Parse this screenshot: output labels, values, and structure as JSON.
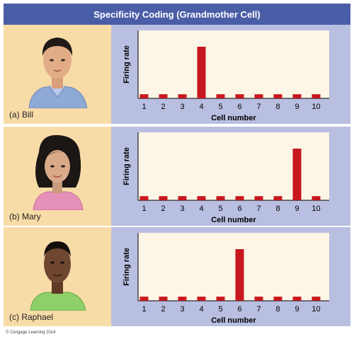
{
  "title": "Specificity Coding (Grandmother Cell)",
  "rows": [
    {
      "caption": "(a) Bill",
      "icon": "face-bill-icon"
    },
    {
      "caption": "(b) Mary",
      "icon": "face-mary-icon"
    },
    {
      "caption": "(c) Raphael",
      "icon": "face-raphael-icon"
    }
  ],
  "chart_data": [
    {
      "type": "bar",
      "xlabel": "Cell number",
      "ylabel": "Firing rate",
      "categories": [
        "1",
        "2",
        "3",
        "4",
        "5",
        "6",
        "7",
        "8",
        "9",
        "10"
      ],
      "values": [
        0.08,
        0.08,
        0.08,
        1,
        0.08,
        0.08,
        0.08,
        0.08,
        0.08,
        0.08
      ]
    },
    {
      "type": "bar",
      "xlabel": "Cell number",
      "ylabel": "Firing rate",
      "categories": [
        "1",
        "2",
        "3",
        "4",
        "5",
        "6",
        "7",
        "8",
        "9",
        "10"
      ],
      "values": [
        0.08,
        0.08,
        0.08,
        0.08,
        0.08,
        0.08,
        0.08,
        0.08,
        1,
        0.08
      ]
    },
    {
      "type": "bar",
      "xlabel": "Cell number",
      "ylabel": "Firing rate",
      "categories": [
        "1",
        "2",
        "3",
        "4",
        "5",
        "6",
        "7",
        "8",
        "9",
        "10"
      ],
      "values": [
        0.08,
        0.08,
        0.08,
        0.08,
        0.08,
        1,
        0.08,
        0.08,
        0.08,
        0.08
      ]
    }
  ],
  "colors": {
    "bar": "#c8171e",
    "title_bg": "#4a5ea7",
    "panel_bg": "#b9bfe1",
    "plot_bg": "#fdf6e6",
    "row_bg": "#f8dca8"
  },
  "footer": "© Cengage Learning 2014"
}
